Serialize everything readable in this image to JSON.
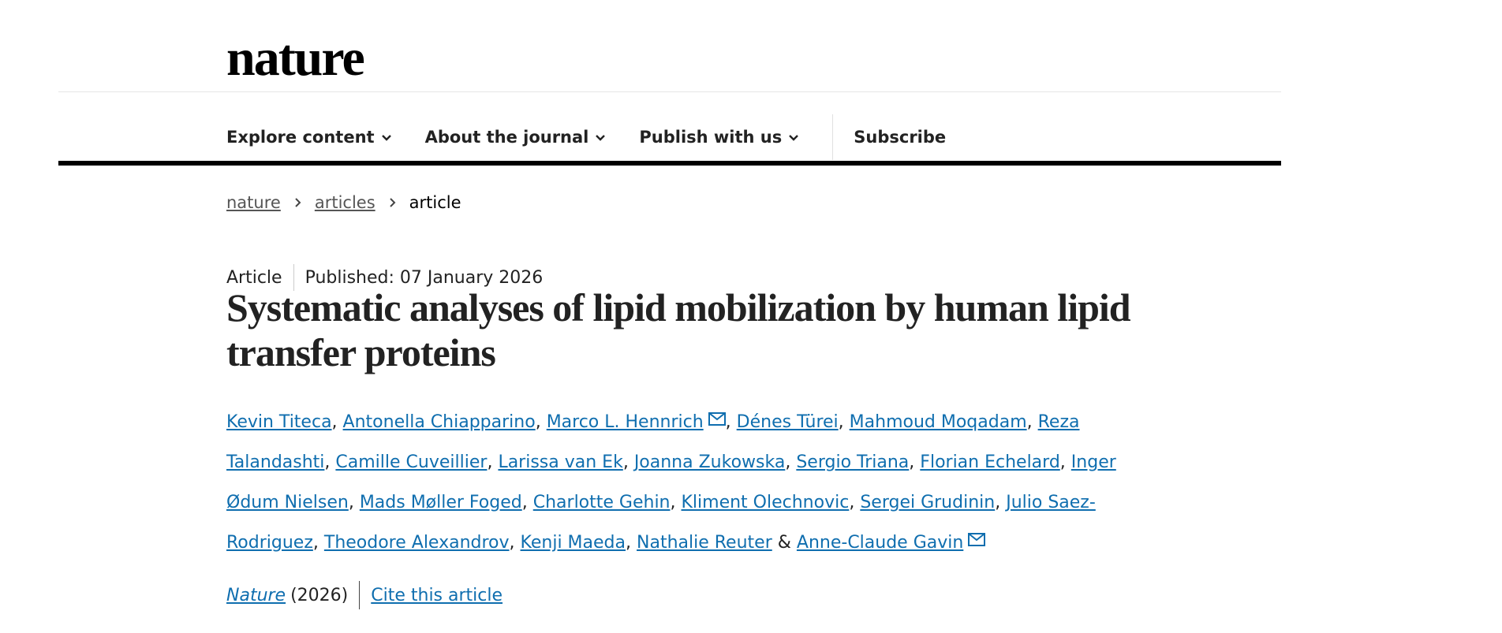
{
  "header": {
    "logo": "nature",
    "nav": [
      "Explore content",
      "About the journal",
      "Publish with us"
    ],
    "subscribe": "Subscribe"
  },
  "breadcrumb": [
    "nature",
    "articles",
    "article"
  ],
  "article": {
    "type": "Article",
    "published": "Published: 07 January 2026",
    "title": "Systematic analyses of lipid mobilization by human lipid transfer proteins",
    "authors": [
      {
        "name": "Kevin Titeca",
        "corresponding": false
      },
      {
        "name": "Antonella Chiapparino",
        "corresponding": false
      },
      {
        "name": "Marco L. Hennrich",
        "corresponding": true
      },
      {
        "name": "Dénes Türei",
        "corresponding": false
      },
      {
        "name": "Mahmoud Moqadam",
        "corresponding": false
      },
      {
        "name": "Reza Talandashti",
        "corresponding": false
      },
      {
        "name": "Camille Cuveillier",
        "corresponding": false
      },
      {
        "name": "Larissa van Ek",
        "corresponding": false
      },
      {
        "name": "Joanna Zukowska",
        "corresponding": false
      },
      {
        "name": "Sergio Triana",
        "corresponding": false
      },
      {
        "name": "Florian Echelard",
        "corresponding": false
      },
      {
        "name": "Inger Ødum Nielsen",
        "corresponding": false
      },
      {
        "name": "Mads Møller Foged",
        "corresponding": false
      },
      {
        "name": "Charlotte Gehin",
        "corresponding": false
      },
      {
        "name": "Kliment Olechnovic",
        "corresponding": false
      },
      {
        "name": "Sergei Grudinin",
        "corresponding": false
      },
      {
        "name": "Julio Saez-Rodriguez",
        "corresponding": false
      },
      {
        "name": "Theodore Alexandrov",
        "corresponding": false
      },
      {
        "name": "Kenji Maeda",
        "corresponding": false
      },
      {
        "name": "Nathalie Reuter",
        "corresponding": false
      },
      {
        "name": "Anne-Claude Gavin",
        "corresponding": true
      }
    ],
    "author_separator": ",",
    "author_last_separator": "&",
    "journal": "Nature",
    "year": "(2026)",
    "cite": "Cite this article"
  }
}
